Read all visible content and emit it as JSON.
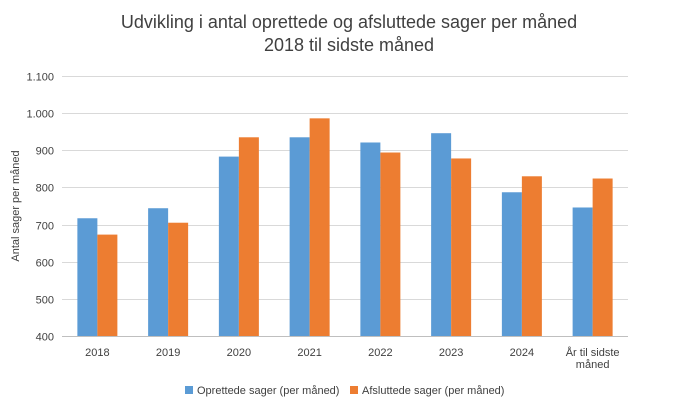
{
  "chart_data": {
    "type": "bar",
    "title_lines": [
      "Udvikling i antal oprettede og afsluttede sager per måned",
      "2018 til sidste måned"
    ],
    "ylabel": "Antal sager per måned",
    "xlabel": "",
    "ylim": [
      400,
      1100
    ],
    "yticks": [
      400,
      500,
      600,
      700,
      800,
      900,
      1000,
      1100
    ],
    "ytick_labels": [
      "400",
      "500",
      "600",
      "700",
      "800",
      "900",
      "1.000",
      "1.100"
    ],
    "categories": [
      "2018",
      "2019",
      "2020",
      "2021",
      "2022",
      "2023",
      "2024",
      "År til sidste måned"
    ],
    "category_label_lines": [
      [
        "2018"
      ],
      [
        "2019"
      ],
      [
        "2020"
      ],
      [
        "2021"
      ],
      [
        "2022"
      ],
      [
        "2023"
      ],
      [
        "2024"
      ],
      [
        "År til sidste",
        "måned"
      ]
    ],
    "series": [
      {
        "name": "Oprettede sager (per måned)",
        "color": "#5b9bd5",
        "values": [
          717,
          744,
          883,
          935,
          921,
          946,
          787,
          746
        ]
      },
      {
        "name": "Afsluttede sager (per måned)",
        "color": "#ed7d31",
        "values": [
          673,
          705,
          935,
          986,
          894,
          878,
          830,
          824
        ]
      }
    ],
    "grid": true,
    "legend_position": "bottom"
  }
}
